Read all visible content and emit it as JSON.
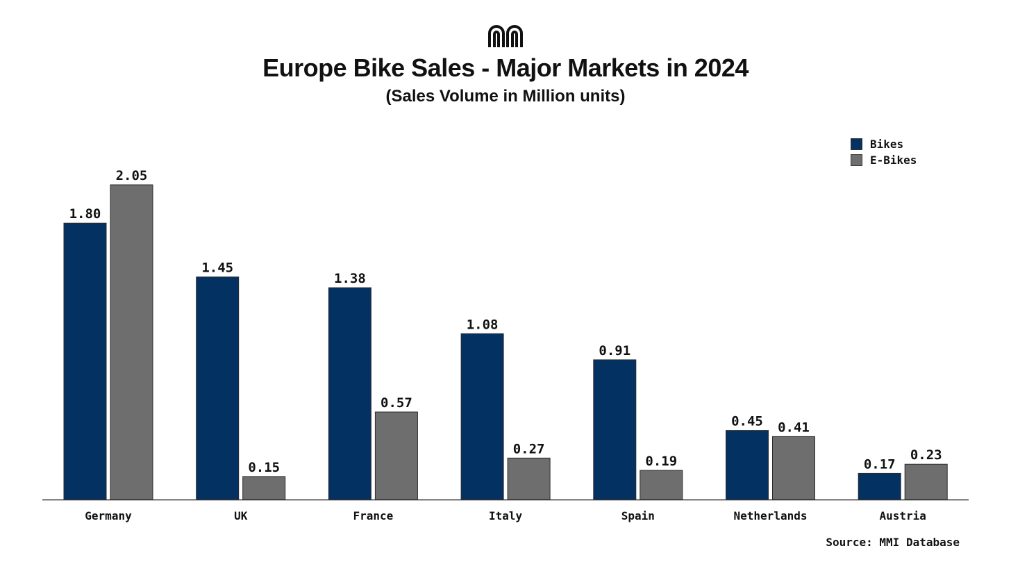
{
  "brand": {
    "logo_icon": "mmi-arches-icon"
  },
  "header": {
    "title": "Europe Bike Sales - Major Markets in 2024",
    "subtitle": "(Sales Volume in Million units)"
  },
  "legend": {
    "items": [
      {
        "label": "Bikes",
        "color": "#033162"
      },
      {
        "label": "E-Bikes",
        "color": "#6e6e6e"
      }
    ]
  },
  "chart_data": {
    "type": "bar",
    "title": "Europe Bike Sales - Major Markets in 2024",
    "subtitle": "(Sales Volume in Million units)",
    "xlabel": "",
    "ylabel": "",
    "ylim": [
      0,
      2.05
    ],
    "grid": false,
    "legend_position": "top-right",
    "categories": [
      "Germany",
      "UK",
      "France",
      "Italy",
      "Spain",
      "Netherlands",
      "Austria"
    ],
    "series": [
      {
        "name": "Bikes",
        "color": "#033162",
        "values": [
          1.8,
          1.45,
          1.38,
          1.08,
          0.91,
          0.45,
          0.17
        ],
        "labels": [
          "1.80",
          "1.45",
          "1.38",
          "1.08",
          "0.91",
          "0.45",
          "0.17"
        ]
      },
      {
        "name": "E-Bikes",
        "color": "#6e6e6e",
        "values": [
          2.05,
          0.15,
          0.57,
          0.27,
          0.19,
          0.41,
          0.23
        ],
        "labels": [
          "2.05",
          "0.15",
          "0.57",
          "0.27",
          "0.19",
          "0.41",
          "0.23"
        ]
      }
    ]
  },
  "footer": {
    "source": "Source: MMI Database"
  }
}
